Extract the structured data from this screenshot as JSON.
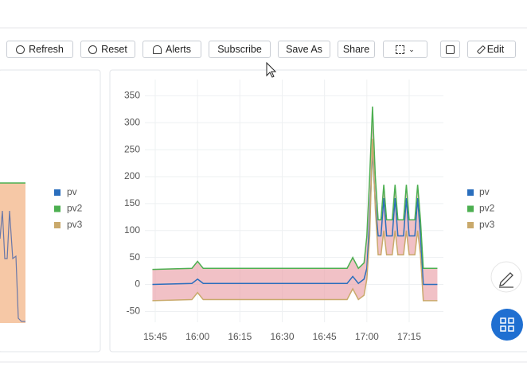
{
  "toolbar": {
    "buttons": [
      "Refresh",
      "Reset",
      "Alerts",
      "Subscribe",
      "Save As",
      "Share",
      "Edit"
    ]
  },
  "left_panel": {
    "legend": [
      "pv",
      "pv2",
      "pv3"
    ]
  },
  "chart_data": {
    "type": "line",
    "x": [
      "15:44",
      "15:58",
      "16:00",
      "16:02",
      "16:53",
      "16:55",
      "16:57",
      "16:59",
      "17:00",
      "17:01",
      "17:02",
      "17:03",
      "17:04",
      "17:05",
      "17:06",
      "17:07",
      "17:09",
      "17:10",
      "17:11",
      "17:13",
      "17:14",
      "17:15",
      "17:17",
      "17:18",
      "17:19",
      "17:20",
      "17:25"
    ],
    "series": [
      {
        "name": "pv",
        "color": "#2a6ebd",
        "values": [
          0,
          2,
          10,
          2,
          2,
          15,
          2,
          10,
          30,
          120,
          250,
          150,
          90,
          90,
          160,
          90,
          90,
          160,
          90,
          90,
          160,
          90,
          90,
          160,
          90,
          0,
          0
        ]
      },
      {
        "name": "pv2",
        "color": "#4caf50",
        "values": [
          28,
          30,
          43,
          30,
          30,
          50,
          30,
          40,
          90,
          200,
          330,
          200,
          120,
          120,
          185,
          120,
          120,
          185,
          120,
          120,
          185,
          120,
          120,
          185,
          120,
          30,
          30
        ]
      },
      {
        "name": "pv3",
        "color": "#c9a96b",
        "values": [
          -30,
          -28,
          -15,
          -28,
          -28,
          -8,
          -28,
          -20,
          10,
          90,
          270,
          140,
          55,
          55,
          100,
          55,
          55,
          100,
          55,
          55,
          100,
          55,
          55,
          100,
          55,
          -30,
          -30
        ]
      }
    ],
    "ylim": [
      -70,
      380
    ],
    "yticks": [
      -50,
      0,
      50,
      100,
      150,
      200,
      250,
      300,
      350
    ],
    "xticks": [
      "15:45",
      "16:00",
      "16:15",
      "16:30",
      "16:45",
      "17:00",
      "17:15"
    ],
    "grid": true
  }
}
